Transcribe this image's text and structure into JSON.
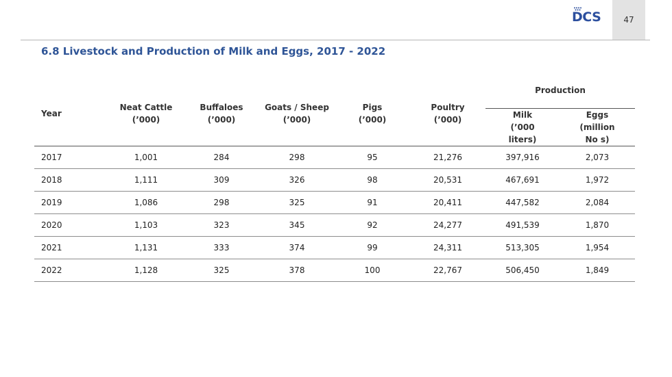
{
  "header": {
    "logo_text": "DCS",
    "page_number": "47"
  },
  "title": "6.8 Livestock and Production of Milk and Eggs, 2017 - 2022",
  "table": {
    "col_year": "Year",
    "col_neat_cattle": [
      "Neat Cattle",
      "(’000)"
    ],
    "col_buffaloes": [
      "Buffaloes",
      "(’000)"
    ],
    "col_goats_sheep": [
      "Goats / Sheep",
      "(’000)"
    ],
    "col_pigs": [
      "Pigs",
      "(’000)"
    ],
    "col_poultry": [
      "Poultry",
      "(’000)"
    ],
    "col_production": "Production",
    "col_milk": [
      "Milk",
      "(’000",
      "liters)"
    ],
    "col_eggs": [
      "Eggs",
      "(million",
      "No s)"
    ],
    "rows": [
      [
        "2017",
        "1,001",
        "284",
        "298",
        "95",
        "21,276",
        "397,916",
        "2,073"
      ],
      [
        "2018",
        "1,111",
        "309",
        "326",
        "98",
        "20,531",
        "467,691",
        "1,972"
      ],
      [
        "2019",
        "1,086",
        "298",
        "325",
        "91",
        "20,411",
        "447,582",
        "2,084"
      ],
      [
        "2020",
        "1,103",
        "323",
        "345",
        "92",
        "24,277",
        "491,539",
        "1,870"
      ],
      [
        "2021",
        "1,131",
        "333",
        "374",
        "99",
        "24,311",
        "513,305",
        "1,954"
      ],
      [
        "2022",
        "1,128",
        "325",
        "378",
        "100",
        "22,767",
        "506,450",
        "1,849"
      ]
    ]
  }
}
